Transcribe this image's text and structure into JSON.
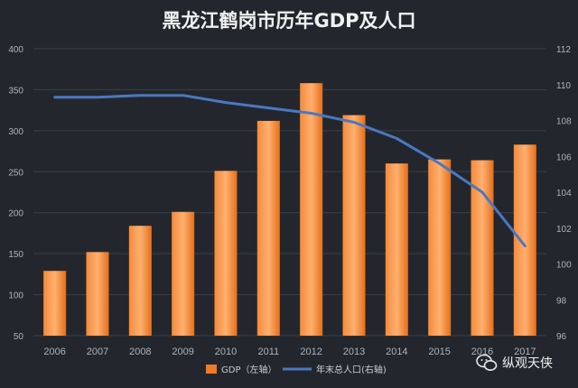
{
  "chart_data": {
    "type": "bar",
    "title": "黑龙江鹤岗市历年GDP及人口",
    "categories": [
      "2006",
      "2007",
      "2008",
      "2009",
      "2010",
      "2011",
      "2012",
      "2013",
      "2014",
      "2015",
      "2016",
      "2017"
    ],
    "y_left": {
      "ylim": [
        50,
        400
      ],
      "ticks": [
        "50",
        "100",
        "150",
        "200",
        "250",
        "300",
        "350",
        "400"
      ]
    },
    "y_right": {
      "ylim": [
        96,
        112
      ],
      "ticks": [
        "96",
        "98",
        "100",
        "102",
        "104",
        "106",
        "108",
        "110",
        "112"
      ]
    },
    "series": [
      {
        "name": "GDP（左轴）",
        "type": "bar",
        "axis": "left",
        "color": "#f07a26",
        "values": [
          129,
          152,
          184,
          201,
          251,
          312,
          358,
          319,
          260,
          265,
          264,
          283
        ]
      },
      {
        "name": "年末总人口(右轴)",
        "type": "line",
        "axis": "right",
        "color": "#4a78c2",
        "values": [
          109.3,
          109.3,
          109.4,
          109.4,
          109.0,
          108.7,
          108.4,
          107.9,
          107.0,
          105.6,
          104.0,
          101.0
        ]
      }
    ],
    "grid": true,
    "legend_position": "bottom-center"
  },
  "watermark": {
    "text": "纵观天侠",
    "icon": "wechat-icon"
  }
}
